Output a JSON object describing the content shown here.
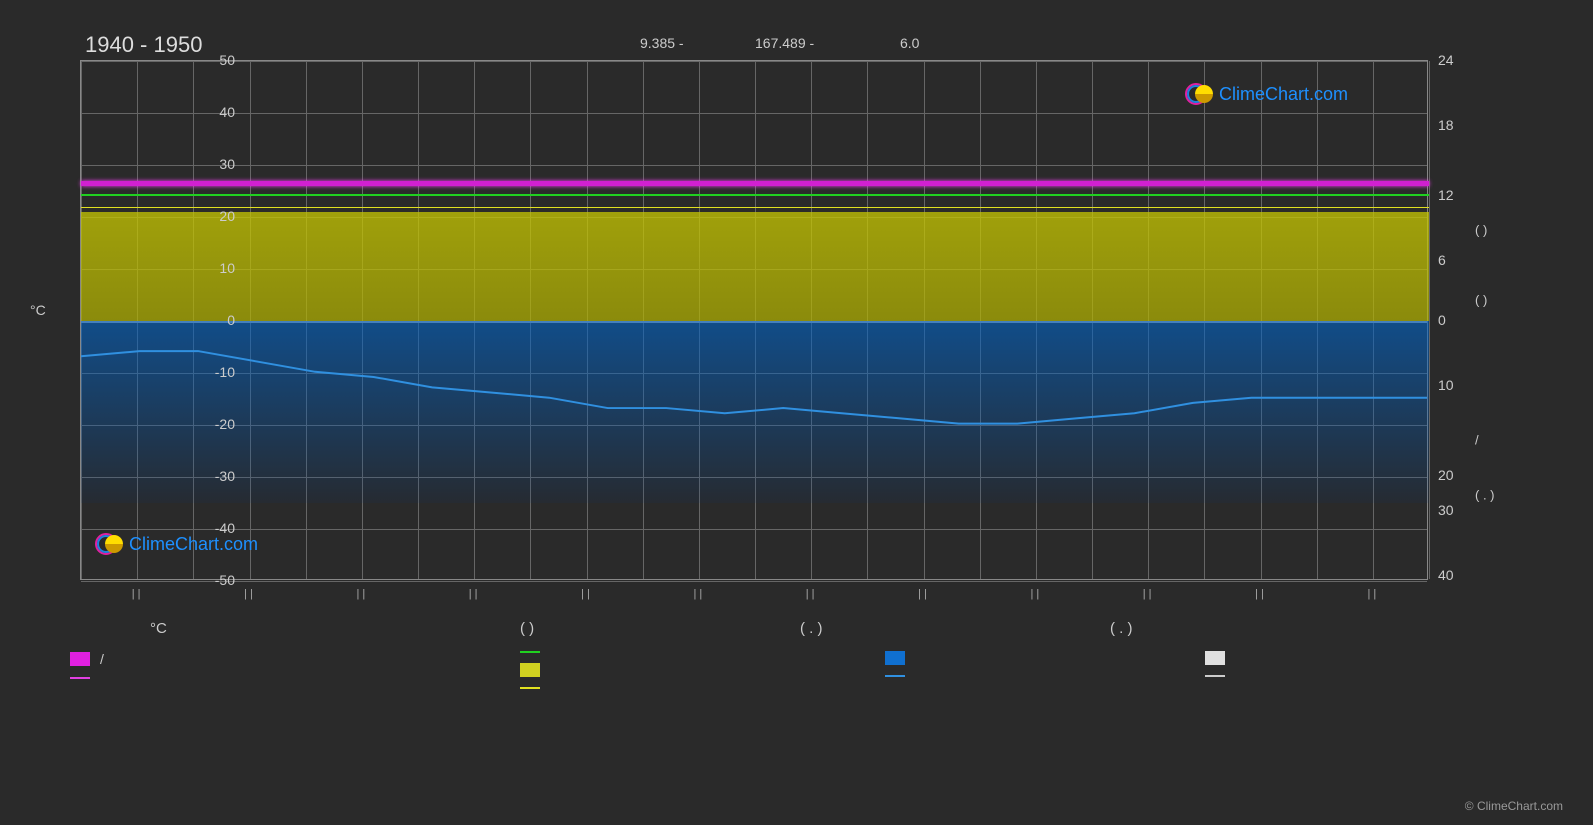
{
  "title": "1940 - 1950",
  "header": {
    "lat": "9.385 -",
    "lon": "167.489 -",
    "elev": "6.0"
  },
  "chart": {
    "type": "line+area",
    "background_color": "#2a2a2a",
    "grid_color": "#666666",
    "zero_line_color": "#aaaaaa",
    "y_left": {
      "title": "°C",
      "ticks": [
        50,
        40,
        30,
        20,
        10,
        0,
        -10,
        -20,
        -30,
        -40,
        -50
      ],
      "min": -50,
      "max": 50
    },
    "y_right": {
      "ticks": [
        24,
        18,
        12,
        6,
        0,
        10,
        20,
        30,
        40
      ],
      "units": [
        "(   )",
        "(   )",
        "/",
        "( . )"
      ]
    },
    "x_months": 12,
    "magenta_band": {
      "top_c": 27,
      "bottom_c": 26,
      "color": "#d020d0"
    },
    "green_line": {
      "y_c": 24.5,
      "color": "#20d020"
    },
    "yellow_line": {
      "y_c": 22,
      "color": "#e0e020"
    },
    "yellow_fill": {
      "top_c": 21,
      "bottom_c": 0,
      "color": "#c8c800"
    },
    "blue_fill": {
      "top_c": 0,
      "bottom_c": -35,
      "color": "#0064c8"
    },
    "blue_curve": {
      "color": "#3090e0",
      "points_c": [
        -7,
        -6,
        -6,
        -8,
        -10,
        -11,
        -13,
        -14,
        -15,
        -17,
        -17,
        -18,
        -17,
        -18,
        -19,
        -20,
        -20,
        -19,
        -18,
        -16,
        -15,
        -15,
        -15,
        -15
      ]
    }
  },
  "x_ticks": [
    "| |",
    "| |",
    "| |",
    "| |",
    "| |",
    "| |",
    "| |",
    "| |",
    "| |",
    "| |",
    "| |",
    "| |"
  ],
  "legend": {
    "headers": [
      "°C",
      "(          )",
      "( . )",
      "( . )"
    ],
    "col1": [
      {
        "type": "swatch",
        "color": "#e020e0",
        "label": "/"
      },
      {
        "type": "line",
        "color": "#e040e0",
        "label": ""
      }
    ],
    "col2": [
      {
        "type": "line",
        "color": "#20d020",
        "label": ""
      },
      {
        "type": "swatch",
        "color": "#d0d020",
        "label": ""
      },
      {
        "type": "line",
        "color": "#e0e020",
        "label": ""
      }
    ],
    "col3": [
      {
        "type": "swatch",
        "color": "#1070d0",
        "label": ""
      },
      {
        "type": "line",
        "color": "#3090e0",
        "label": ""
      }
    ],
    "col4": [
      {
        "type": "swatch",
        "color": "#e0e0e0",
        "label": ""
      },
      {
        "type": "line",
        "color": "#cccccc",
        "label": ""
      }
    ]
  },
  "logo_text": "ClimeChart.com",
  "copyright": "© ClimeChart.com"
}
